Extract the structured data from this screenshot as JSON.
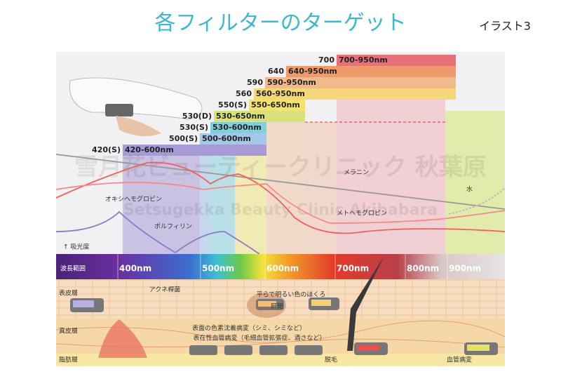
{
  "title": "各フィルターのターゲット",
  "tag": "イラスト3",
  "filters": [
    {
      "label": "700",
      "range": "700-950nm"
    },
    {
      "label": "640",
      "range": "640-950nm"
    },
    {
      "label": "590",
      "range": "590-950nm"
    },
    {
      "label": "560",
      "range": "560-950nm"
    },
    {
      "label": "550(S)",
      "range": "550-650nm"
    },
    {
      "label": "530(D)",
      "range": "530-650nm"
    },
    {
      "label": "530(S)",
      "range": "530-600nm"
    },
    {
      "label": "500(S)",
      "range": "500-600nm"
    },
    {
      "label": "420(S)",
      "range": "420-600nm"
    }
  ],
  "curves": {
    "absorbance": "↑ 吸光度",
    "melanin": "メラニン",
    "oxyhemoglobin": "オキシヘモグロビン",
    "methemoglobin": "メトヘモグロビン",
    "porphyrin": "ポルフィリン",
    "water": "水"
  },
  "wavelength": {
    "label": "波長範囲",
    "marks": [
      "400nm",
      "500nm",
      "600nm",
      "700nm",
      "800nm",
      "900nm"
    ]
  },
  "skin": {
    "epidermis": "表皮層",
    "dermis": "真皮層",
    "fat": "脂肪層"
  },
  "targets": [
    "アクネ桿菌",
    "平らで明るい色のほくろ",
    "肝斑",
    "表面の色素沈着病変（シミ、シミなど）",
    "表在性血管病変（毛細血管拡張症、酒さなど）",
    "脱毛",
    "血管病変"
  ],
  "watermark": [
    "雪月花ビューティークリニック 秋葉原",
    "Setsugekka Beauty Clinic Akihabara"
  ]
}
